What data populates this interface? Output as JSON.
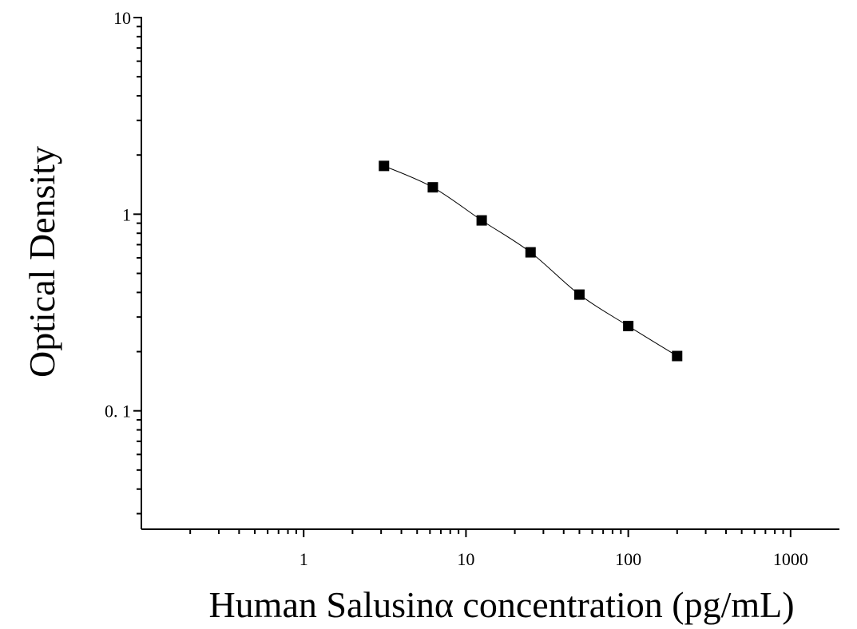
{
  "chart_data": {
    "type": "scatter",
    "xlabel": "Human Salusinα concentration (pg/mL)",
    "ylabel": "Optical Density",
    "xscale": "log",
    "yscale": "log",
    "xlim": [
      0.1,
      2000
    ],
    "ylim": [
      0.025,
      10
    ],
    "xticks": [
      {
        "value": 1,
        "label": "1"
      },
      {
        "value": 10,
        "label": "10"
      },
      {
        "value": 100,
        "label": "100"
      },
      {
        "value": 1000,
        "label": "1000"
      }
    ],
    "yticks": [
      {
        "value": 0.1,
        "label": "0. 1"
      },
      {
        "value": 1,
        "label": "1"
      },
      {
        "value": 10,
        "label": "10"
      }
    ],
    "grid": false,
    "series": [
      {
        "marker": "square",
        "color": "#000000",
        "x": [
          3.125,
          6.25,
          12.5,
          25,
          50,
          100,
          200
        ],
        "y": [
          1.76,
          1.37,
          0.93,
          0.64,
          0.39,
          0.27,
          0.19
        ]
      }
    ],
    "fit_curve": {
      "type": "smooth",
      "color": "#000000"
    }
  }
}
